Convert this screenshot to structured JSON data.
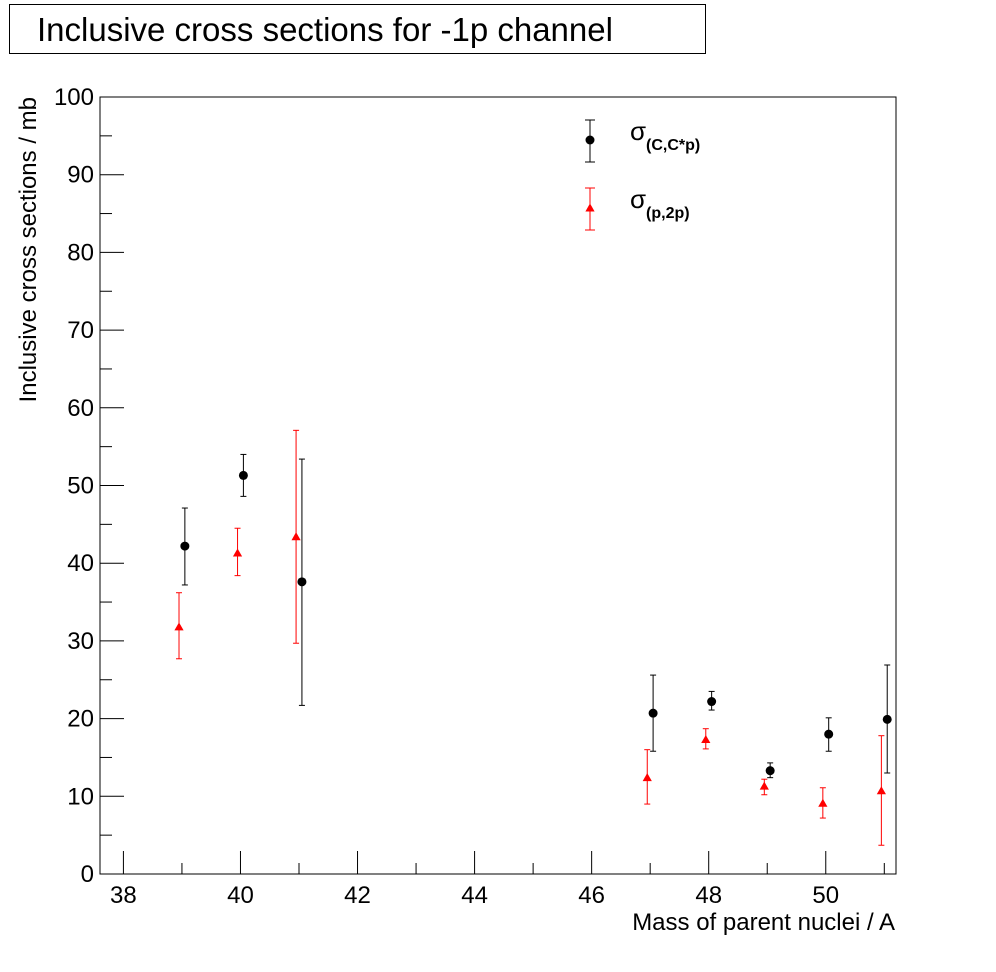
{
  "chart_data": {
    "type": "scatter",
    "title": "Inclusive cross sections for -1p channel",
    "xlabel": "Mass of parent nuclei / A",
    "ylabel": "Inclusive cross sections / mb",
    "xlim": [
      37.6,
      51.2
    ],
    "ylim": [
      0,
      100
    ],
    "xticks": [
      38,
      40,
      42,
      44,
      46,
      48,
      50
    ],
    "xtick_labels": [
      "38",
      "40",
      "42",
      "44",
      "46",
      "48",
      "50"
    ],
    "yticks": [
      0,
      10,
      20,
      30,
      40,
      50,
      60,
      70,
      80,
      90,
      100
    ],
    "ytick_labels": [
      "0",
      "10",
      "20",
      "30",
      "40",
      "50",
      "60",
      "70",
      "80",
      "90",
      "100"
    ],
    "grid": false,
    "legend_position": "top-right",
    "series": [
      {
        "name": "σ(C,C*p)",
        "legend_main": "σ",
        "legend_sub": "(C,C*p)",
        "color": "#000000",
        "marker": "circle",
        "points": [
          {
            "x": 39.05,
            "y": 42.2,
            "err_low": 37.2,
            "err_high": 47.1
          },
          {
            "x": 40.05,
            "y": 51.3,
            "err_low": 48.6,
            "err_high": 54.0
          },
          {
            "x": 41.05,
            "y": 37.6,
            "err_low": 21.7,
            "err_high": 53.4
          },
          {
            "x": 47.05,
            "y": 20.7,
            "err_low": 15.8,
            "err_high": 25.6
          },
          {
            "x": 48.05,
            "y": 22.2,
            "err_low": 21.1,
            "err_high": 23.5
          },
          {
            "x": 49.05,
            "y": 13.3,
            "err_low": 12.4,
            "err_high": 14.3
          },
          {
            "x": 50.05,
            "y": 18.0,
            "err_low": 15.8,
            "err_high": 20.1
          },
          {
            "x": 51.05,
            "y": 19.9,
            "err_low": 13.0,
            "err_high": 26.9
          }
        ]
      },
      {
        "name": "σ(p,2p)",
        "legend_main": "σ",
        "legend_sub": "(p,2p)",
        "color": "#ff0000",
        "marker": "triangle",
        "points": [
          {
            "x": 38.95,
            "y": 31.8,
            "err_low": 27.7,
            "err_high": 36.2
          },
          {
            "x": 39.95,
            "y": 41.3,
            "err_low": 38.4,
            "err_high": 44.5
          },
          {
            "x": 40.95,
            "y": 43.4,
            "err_low": 29.7,
            "err_high": 57.1
          },
          {
            "x": 46.95,
            "y": 12.4,
            "err_low": 9.0,
            "err_high": 16.0
          },
          {
            "x": 47.95,
            "y": 17.3,
            "err_low": 16.1,
            "err_high": 18.7
          },
          {
            "x": 48.95,
            "y": 11.3,
            "err_low": 10.2,
            "err_high": 12.2
          },
          {
            "x": 49.95,
            "y": 9.1,
            "err_low": 7.2,
            "err_high": 11.1
          },
          {
            "x": 50.95,
            "y": 10.7,
            "err_low": 3.7,
            "err_high": 17.8
          }
        ]
      }
    ]
  }
}
